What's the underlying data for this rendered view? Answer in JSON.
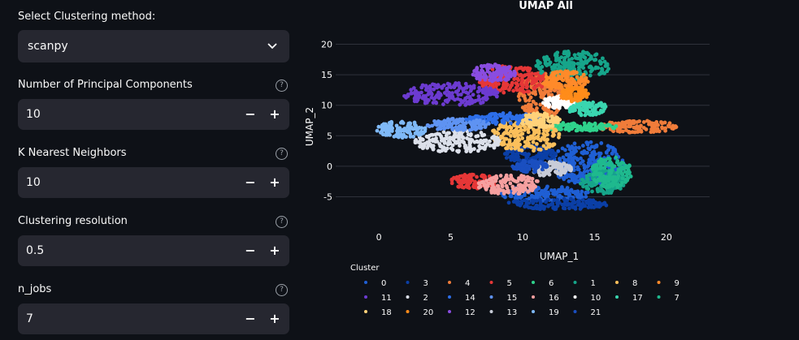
{
  "controls": {
    "method": {
      "label": "Select Clustering method:",
      "value": "scanpy"
    },
    "pcs": {
      "label": "Number of Principal Components",
      "value": "10"
    },
    "knn": {
      "label": "K Nearest Neighbors",
      "value": "10"
    },
    "resolution": {
      "label": "Clustering resolution",
      "value": "0.5"
    },
    "njobs": {
      "label": "n_jobs",
      "value": "7"
    },
    "help_glyph": "?",
    "minus_glyph": "−",
    "plus_glyph": "+"
  },
  "chart_data": {
    "type": "scatter",
    "title": "UMAP All",
    "xlabel": "UMAP_1",
    "ylabel": "UMAP_2",
    "xlim": [
      -3,
      23
    ],
    "ylim": [
      -8,
      21
    ],
    "xticks": [
      0,
      5,
      10,
      15,
      20
    ],
    "yticks": [
      -5,
      0,
      5,
      10,
      15,
      20
    ],
    "grid": "horizontal",
    "legend": {
      "title": "Cluster",
      "placement": "bottom",
      "rows": [
        [
          "0",
          "3",
          "4",
          "5",
          "6",
          "1",
          "8",
          "9"
        ],
        [
          "11",
          "2",
          "14",
          "15",
          "16",
          "10",
          "17",
          "7"
        ],
        [
          "18",
          "20",
          "12",
          "13",
          "19",
          "21"
        ]
      ]
    },
    "series": [
      {
        "name": "0",
        "color": "#1f5fd4",
        "clusters": [
          {
            "cx": 14.5,
            "cy": 0.5,
            "rx": 2.6,
            "ry": 3.6
          },
          {
            "cx": 11.5,
            "cy": -4.5,
            "rx": 3.2,
            "ry": 1.2
          }
        ]
      },
      {
        "name": "3",
        "color": "#0b3fa6",
        "clusters": [
          {
            "cx": 12.5,
            "cy": -6.2,
            "rx": 3.6,
            "ry": 0.9
          },
          {
            "cx": 10.5,
            "cy": 2.0,
            "rx": 1.8,
            "ry": 1.5
          }
        ]
      },
      {
        "name": "4",
        "color": "#f07c3a",
        "clusters": [
          {
            "cx": 11.3,
            "cy": 11.5,
            "rx": 1.6,
            "ry": 3.8
          },
          {
            "cx": 18.0,
            "cy": 6.5,
            "rx": 2.8,
            "ry": 1.0
          }
        ]
      },
      {
        "name": "5",
        "color": "#e63737",
        "clusters": [
          {
            "cx": 9.3,
            "cy": 14.2,
            "rx": 2.4,
            "ry": 2.3
          },
          {
            "cx": 6.6,
            "cy": -2.5,
            "rx": 1.6,
            "ry": 1.2
          }
        ]
      },
      {
        "name": "6",
        "color": "#2fd38c",
        "clusters": [
          {
            "cx": 14.0,
            "cy": 6.5,
            "rx": 2.6,
            "ry": 0.7
          }
        ]
      },
      {
        "name": "1",
        "color": "#16a58a",
        "clusters": [
          {
            "cx": 13.5,
            "cy": 16.5,
            "rx": 2.6,
            "ry": 2.4
          },
          {
            "cx": 15.6,
            "cy": -2.5,
            "rx": 1.6,
            "ry": 2.0
          }
        ]
      },
      {
        "name": "8",
        "color": "#fbbf5b",
        "clusters": [
          {
            "cx": 10.2,
            "cy": 5.0,
            "rx": 2.4,
            "ry": 2.6
          }
        ]
      },
      {
        "name": "9",
        "color": "#ff8a2a",
        "clusters": [
          {
            "cx": 13.0,
            "cy": 14.0,
            "rx": 1.6,
            "ry": 1.6
          }
        ]
      },
      {
        "name": "11",
        "color": "#6c3bd1",
        "clusters": [
          {
            "cx": 5.0,
            "cy": 11.8,
            "rx": 3.3,
            "ry": 1.9
          }
        ]
      },
      {
        "name": "2",
        "color": "#dce0ea",
        "clusters": [
          {
            "cx": 5.5,
            "cy": 4.0,
            "rx": 3.0,
            "ry": 1.8
          }
        ]
      },
      {
        "name": "14",
        "color": "#2d6ee8",
        "clusters": [
          {
            "cx": 8.8,
            "cy": 7.8,
            "rx": 2.8,
            "ry": 0.9
          }
        ]
      },
      {
        "name": "15",
        "color": "#5f93f2",
        "clusters": [
          {
            "cx": 5.5,
            "cy": 6.8,
            "rx": 2.2,
            "ry": 1.0
          }
        ]
      },
      {
        "name": "16",
        "color": "#f6a0a0",
        "clusters": [
          {
            "cx": 9.0,
            "cy": -3.0,
            "rx": 2.2,
            "ry": 1.6
          }
        ]
      },
      {
        "name": "10",
        "color": "#ffffff",
        "clusters": [
          {
            "cx": 12.6,
            "cy": 10.5,
            "rx": 1.2,
            "ry": 1.0
          }
        ]
      },
      {
        "name": "17",
        "color": "#3ad6b0",
        "clusters": [
          {
            "cx": 14.5,
            "cy": 9.5,
            "rx": 1.4,
            "ry": 1.2
          }
        ]
      },
      {
        "name": "7",
        "color": "#1fb98e",
        "clusters": [
          {
            "cx": 16.2,
            "cy": -1.0,
            "rx": 1.4,
            "ry": 2.6
          }
        ]
      },
      {
        "name": "18",
        "color": "#ffd27a",
        "clusters": [
          {
            "cx": 11.2,
            "cy": 7.5,
            "rx": 1.4,
            "ry": 1.2
          }
        ]
      },
      {
        "name": "20",
        "color": "#ff8c1a",
        "clusters": [
          {
            "cx": 13.6,
            "cy": 11.8,
            "rx": 1.0,
            "ry": 1.2
          }
        ]
      },
      {
        "name": "12",
        "color": "#8a4de0",
        "clusters": [
          {
            "cx": 8.0,
            "cy": 15.3,
            "rx": 1.6,
            "ry": 1.4
          }
        ]
      },
      {
        "name": "13",
        "color": "#c8ccd8",
        "clusters": [
          {
            "cx": 12.0,
            "cy": -0.5,
            "rx": 1.4,
            "ry": 1.2
          }
        ]
      },
      {
        "name": "19",
        "color": "#7fb9f7",
        "clusters": [
          {
            "cx": 1.6,
            "cy": 6.0,
            "rx": 1.8,
            "ry": 1.4
          }
        ]
      },
      {
        "name": "21",
        "color": "#1a4fc0",
        "clusters": [
          {
            "cx": 10.5,
            "cy": 0.0,
            "rx": 1.2,
            "ry": 1.0
          }
        ]
      }
    ]
  }
}
